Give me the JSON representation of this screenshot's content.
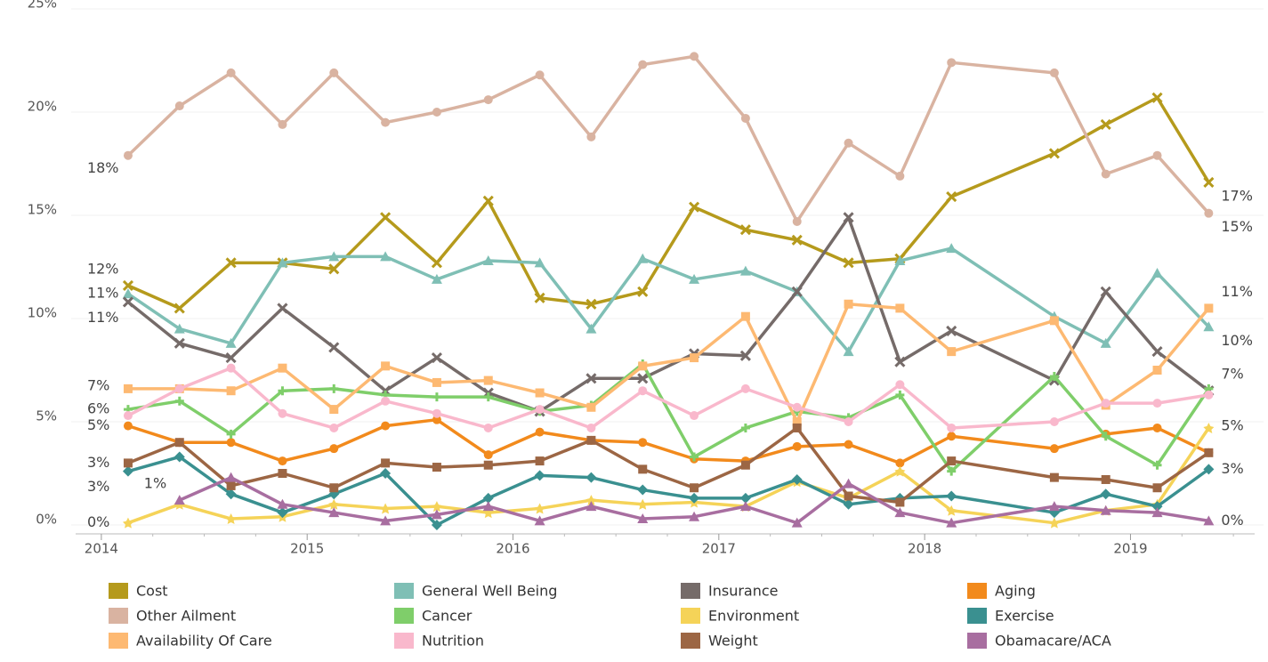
{
  "chart_data": {
    "type": "line",
    "x": [
      2014.13,
      2014.38,
      2014.63,
      2014.88,
      2015.13,
      2015.38,
      2015.63,
      2015.88,
      2016.13,
      2016.38,
      2016.63,
      2016.88,
      2017.13,
      2017.38,
      2017.63,
      2017.88,
      2018.13,
      2018.63,
      2018.88,
      2019.13,
      2019.38
    ],
    "xlim": [
      2013.94,
      2019.56
    ],
    "xticks": [
      2014,
      2015,
      2016,
      2017,
      2018,
      2019
    ],
    "ylim": [
      0,
      25
    ],
    "yticks": [
      {
        "value": 0,
        "label": "0%"
      },
      {
        "value": 5,
        "label": "5%"
      },
      {
        "value": 10,
        "label": "10%"
      },
      {
        "value": 15,
        "label": "15%"
      },
      {
        "value": 20,
        "label": "20%"
      },
      {
        "value": 25,
        "label": "25%"
      }
    ],
    "grid": true,
    "series": [
      {
        "name": "Cost",
        "color": "#b59a1c",
        "marker": "x",
        "values": [
          11.6,
          10.5,
          12.7,
          12.7,
          12.4,
          14.9,
          12.7,
          15.7,
          11.0,
          10.7,
          11.3,
          15.4,
          14.3,
          13.8,
          12.7,
          12.9,
          15.9,
          18.0,
          19.4,
          20.7,
          16.6
        ],
        "value_labels": [
          "12%",
          null,
          null,
          null,
          null,
          null,
          null,
          null,
          null,
          null,
          null,
          null,
          null,
          null,
          null,
          null,
          null,
          null,
          null,
          null,
          "17%"
        ]
      },
      {
        "name": "General Well Being",
        "color": "#7fbfb5",
        "marker": "triangle",
        "values": [
          11.2,
          9.5,
          8.8,
          12.7,
          13.0,
          13.0,
          11.9,
          12.8,
          12.7,
          9.5,
          12.9,
          11.9,
          12.3,
          11.3,
          8.4,
          12.8,
          13.4,
          10.1,
          8.8,
          12.2,
          9.6
        ],
        "value_labels": [
          "11%",
          null,
          null,
          null,
          null,
          null,
          null,
          null,
          null,
          null,
          null,
          null,
          null,
          null,
          null,
          null,
          null,
          null,
          null,
          null,
          "10%"
        ]
      },
      {
        "name": "Insurance",
        "color": "#756b69",
        "marker": "x",
        "values": [
          10.8,
          8.8,
          8.1,
          10.5,
          8.6,
          6.5,
          8.1,
          6.4,
          5.5,
          7.1,
          7.1,
          8.3,
          8.2,
          11.3,
          14.9,
          7.9,
          9.4,
          7.0,
          11.3,
          8.4,
          6.5
        ],
        "value_labels": [
          "11%",
          null,
          null,
          null,
          null,
          null,
          null,
          null,
          null,
          null,
          null,
          null,
          null,
          null,
          null,
          null,
          null,
          null,
          null,
          null,
          null
        ]
      },
      {
        "name": "Aging",
        "color": "#f28a1c",
        "marker": "circle",
        "values": [
          4.8,
          4.0,
          4.0,
          3.1,
          3.7,
          4.8,
          5.1,
          3.4,
          4.5,
          4.1,
          4.0,
          3.2,
          3.1,
          3.8,
          3.9,
          3.0,
          4.3,
          3.7,
          4.4,
          4.7,
          3.5
        ],
        "value_labels": [
          "5%",
          null,
          null,
          null,
          null,
          null,
          null,
          null,
          null,
          null,
          null,
          null,
          null,
          null,
          null,
          null,
          null,
          null,
          null,
          null,
          null
        ]
      },
      {
        "name": "Other Ailment",
        "color": "#d9b3a1",
        "marker": "circle",
        "values": [
          17.9,
          20.3,
          21.9,
          19.4,
          21.9,
          19.5,
          20.0,
          20.6,
          21.8,
          18.8,
          22.3,
          22.7,
          19.7,
          14.7,
          18.5,
          16.9,
          22.4,
          21.9,
          17.0,
          17.9,
          15.1
        ],
        "value_labels": [
          "18%",
          null,
          null,
          null,
          null,
          null,
          null,
          null,
          null,
          null,
          null,
          null,
          null,
          null,
          null,
          null,
          null,
          null,
          null,
          null,
          "15%"
        ]
      },
      {
        "name": "Cancer",
        "color": "#7fce6a",
        "marker": "plus",
        "values": [
          5.6,
          6.0,
          4.4,
          6.5,
          6.6,
          6.3,
          6.2,
          6.2,
          5.5,
          5.8,
          7.8,
          3.3,
          4.7,
          5.5,
          5.2,
          6.3,
          2.6,
          7.2,
          4.3,
          2.9,
          6.6
        ],
        "value_labels": [
          "6%",
          null,
          null,
          null,
          null,
          null,
          null,
          null,
          null,
          null,
          null,
          null,
          null,
          null,
          null,
          null,
          null,
          null,
          null,
          null,
          "7%"
        ]
      },
      {
        "name": "Environment",
        "color": "#f5d358",
        "marker": "star",
        "values": [
          0.1,
          1.0,
          0.3,
          0.4,
          1.0,
          0.8,
          0.9,
          0.6,
          0.8,
          1.2,
          1.0,
          1.1,
          0.9,
          2.1,
          1.3,
          2.6,
          0.7,
          0.1,
          0.7,
          1.0,
          4.7
        ],
        "value_labels": [
          "0%",
          null,
          null,
          null,
          null,
          null,
          null,
          null,
          null,
          null,
          null,
          null,
          null,
          null,
          null,
          null,
          null,
          null,
          null,
          null,
          "5%"
        ]
      },
      {
        "name": "Exercise",
        "color": "#3a9090",
        "marker": "diamond",
        "values": [
          2.6,
          3.3,
          1.5,
          0.6,
          1.5,
          2.5,
          0.0,
          1.3,
          2.4,
          2.3,
          1.7,
          1.3,
          1.3,
          2.2,
          1.0,
          1.3,
          1.4,
          0.6,
          1.5,
          0.9,
          2.7
        ],
        "value_labels": [
          "3%",
          null,
          null,
          null,
          null,
          null,
          null,
          null,
          null,
          null,
          null,
          null,
          null,
          null,
          null,
          null,
          null,
          null,
          null,
          null,
          "3%"
        ]
      },
      {
        "name": "Availability Of Care",
        "color": "#fdb972",
        "marker": "square",
        "values": [
          6.6,
          6.6,
          6.5,
          7.6,
          5.6,
          7.7,
          6.9,
          7.0,
          6.4,
          5.7,
          7.7,
          8.1,
          10.1,
          5.0,
          10.7,
          10.5,
          8.4,
          9.9,
          5.8,
          7.5,
          10.5
        ],
        "value_labels": [
          "7%",
          null,
          null,
          null,
          null,
          null,
          null,
          null,
          null,
          null,
          null,
          null,
          null,
          null,
          null,
          null,
          null,
          null,
          null,
          null,
          "11%"
        ]
      },
      {
        "name": "Nutrition",
        "color": "#f9b8cc",
        "marker": "circle",
        "values": [
          5.3,
          6.6,
          7.6,
          5.4,
          4.7,
          6.0,
          5.4,
          4.7,
          5.6,
          4.7,
          6.5,
          5.3,
          6.6,
          5.7,
          5.0,
          6.8,
          4.7,
          5.0,
          5.9,
          5.9,
          6.3
        ]
      },
      {
        "name": "Weight",
        "color": "#9c6644",
        "marker": "square",
        "values": [
          3.0,
          4.0,
          1.9,
          2.5,
          1.8,
          3.0,
          2.8,
          2.9,
          3.1,
          4.1,
          2.7,
          1.8,
          2.9,
          4.7,
          1.4,
          1.1,
          3.1,
          2.3,
          2.2,
          1.8,
          3.5
        ],
        "value_labels": [
          "3%",
          null,
          null,
          null,
          null,
          null,
          null,
          null,
          null,
          null,
          null,
          null,
          null,
          null,
          null,
          null,
          null,
          null,
          null,
          null,
          null
        ]
      },
      {
        "name": "Obamacare/ACA",
        "color": "#a86ea0",
        "marker": "triangle",
        "values": [
          null,
          1.2,
          2.3,
          1.0,
          0.6,
          0.2,
          0.5,
          0.9,
          0.2,
          0.9,
          0.3,
          0.4,
          0.9,
          0.1,
          2.0,
          0.6,
          0.1,
          0.9,
          0.7,
          0.6,
          0.2
        ],
        "value_labels": [
          null,
          "1%",
          null,
          null,
          null,
          null,
          null,
          null,
          null,
          null,
          null,
          null,
          null,
          null,
          null,
          null,
          null,
          null,
          null,
          null,
          "0%"
        ]
      }
    ]
  }
}
